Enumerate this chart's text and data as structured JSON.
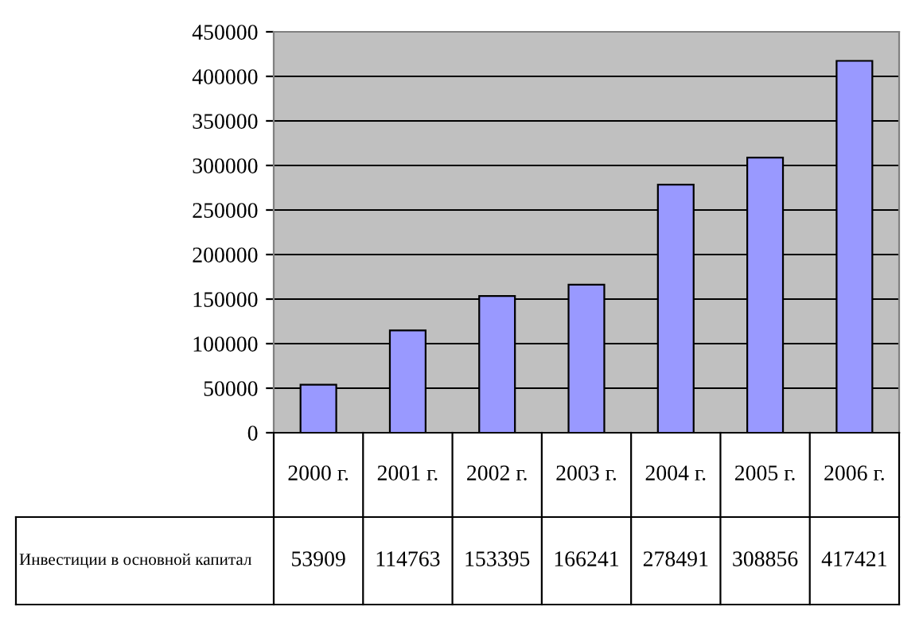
{
  "chart_data": {
    "type": "bar",
    "categories": [
      "2000 г.",
      "2001 г.",
      "2002 г.",
      "2003 г.",
      "2004 г.",
      "2005 г.",
      "2006 г."
    ],
    "series": [
      {
        "name": "Инвестиции в основной капитал",
        "color": "#9999ff",
        "values": [
          53909,
          114763,
          153395,
          166241,
          278491,
          308856,
          417421
        ]
      }
    ],
    "ylim": [
      0,
      450000
    ],
    "yticks": [
      0,
      50000,
      100000,
      150000,
      200000,
      250000,
      300000,
      350000,
      400000,
      450000
    ],
    "grid": "y",
    "data_labels": true
  }
}
